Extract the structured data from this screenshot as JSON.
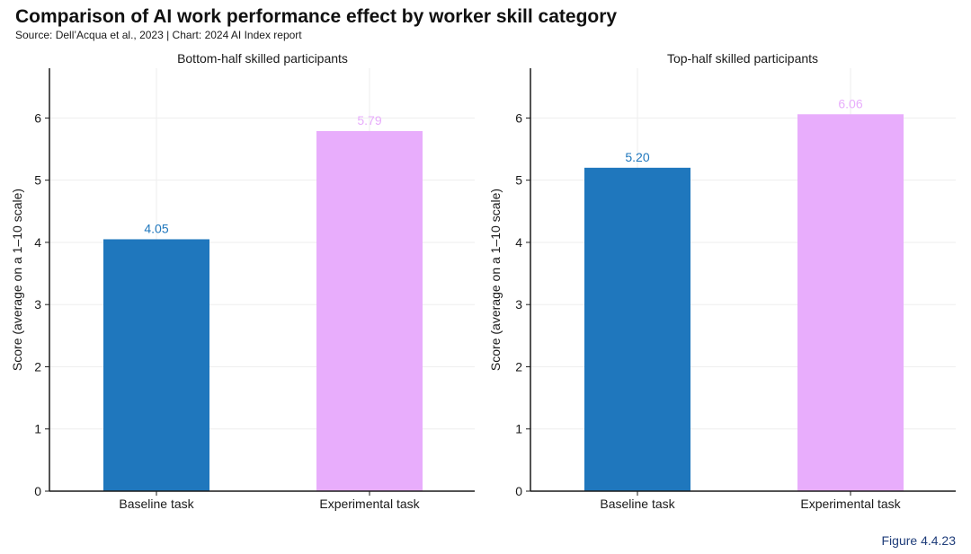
{
  "title": "Comparison of AI work performance effect by worker skill category",
  "subtitle": "Source: Dell’Acqua et al., 2023 | Chart: 2024 AI Index report",
  "figure_label": "Figure 4.4.23",
  "colors": {
    "baseline": "#1f77bd",
    "experimental": "#e8adfc",
    "axis": "#1a1a1a",
    "grid": "#eeeeee"
  },
  "chart_data": [
    {
      "type": "bar",
      "title": "Bottom-half skilled participants",
      "categories": [
        "Baseline task",
        "Experimental task"
      ],
      "values": [
        4.05,
        5.79
      ],
      "value_labels": [
        "4.05",
        "5.79"
      ],
      "ylabel": "Score (average on a 1–10 scale)",
      "xlabel": "",
      "ylim": [
        0,
        6.8
      ],
      "yticks": [
        0,
        1,
        2,
        3,
        4,
        5,
        6
      ],
      "grid": true
    },
    {
      "type": "bar",
      "title": "Top-half skilled participants",
      "categories": [
        "Baseline task",
        "Experimental task"
      ],
      "values": [
        5.2,
        6.06
      ],
      "value_labels": [
        "5.20",
        "6.06"
      ],
      "ylabel": "Score (average on a 1–10 scale)",
      "xlabel": "",
      "ylim": [
        0,
        6.8
      ],
      "yticks": [
        0,
        1,
        2,
        3,
        4,
        5,
        6
      ],
      "grid": true
    }
  ]
}
